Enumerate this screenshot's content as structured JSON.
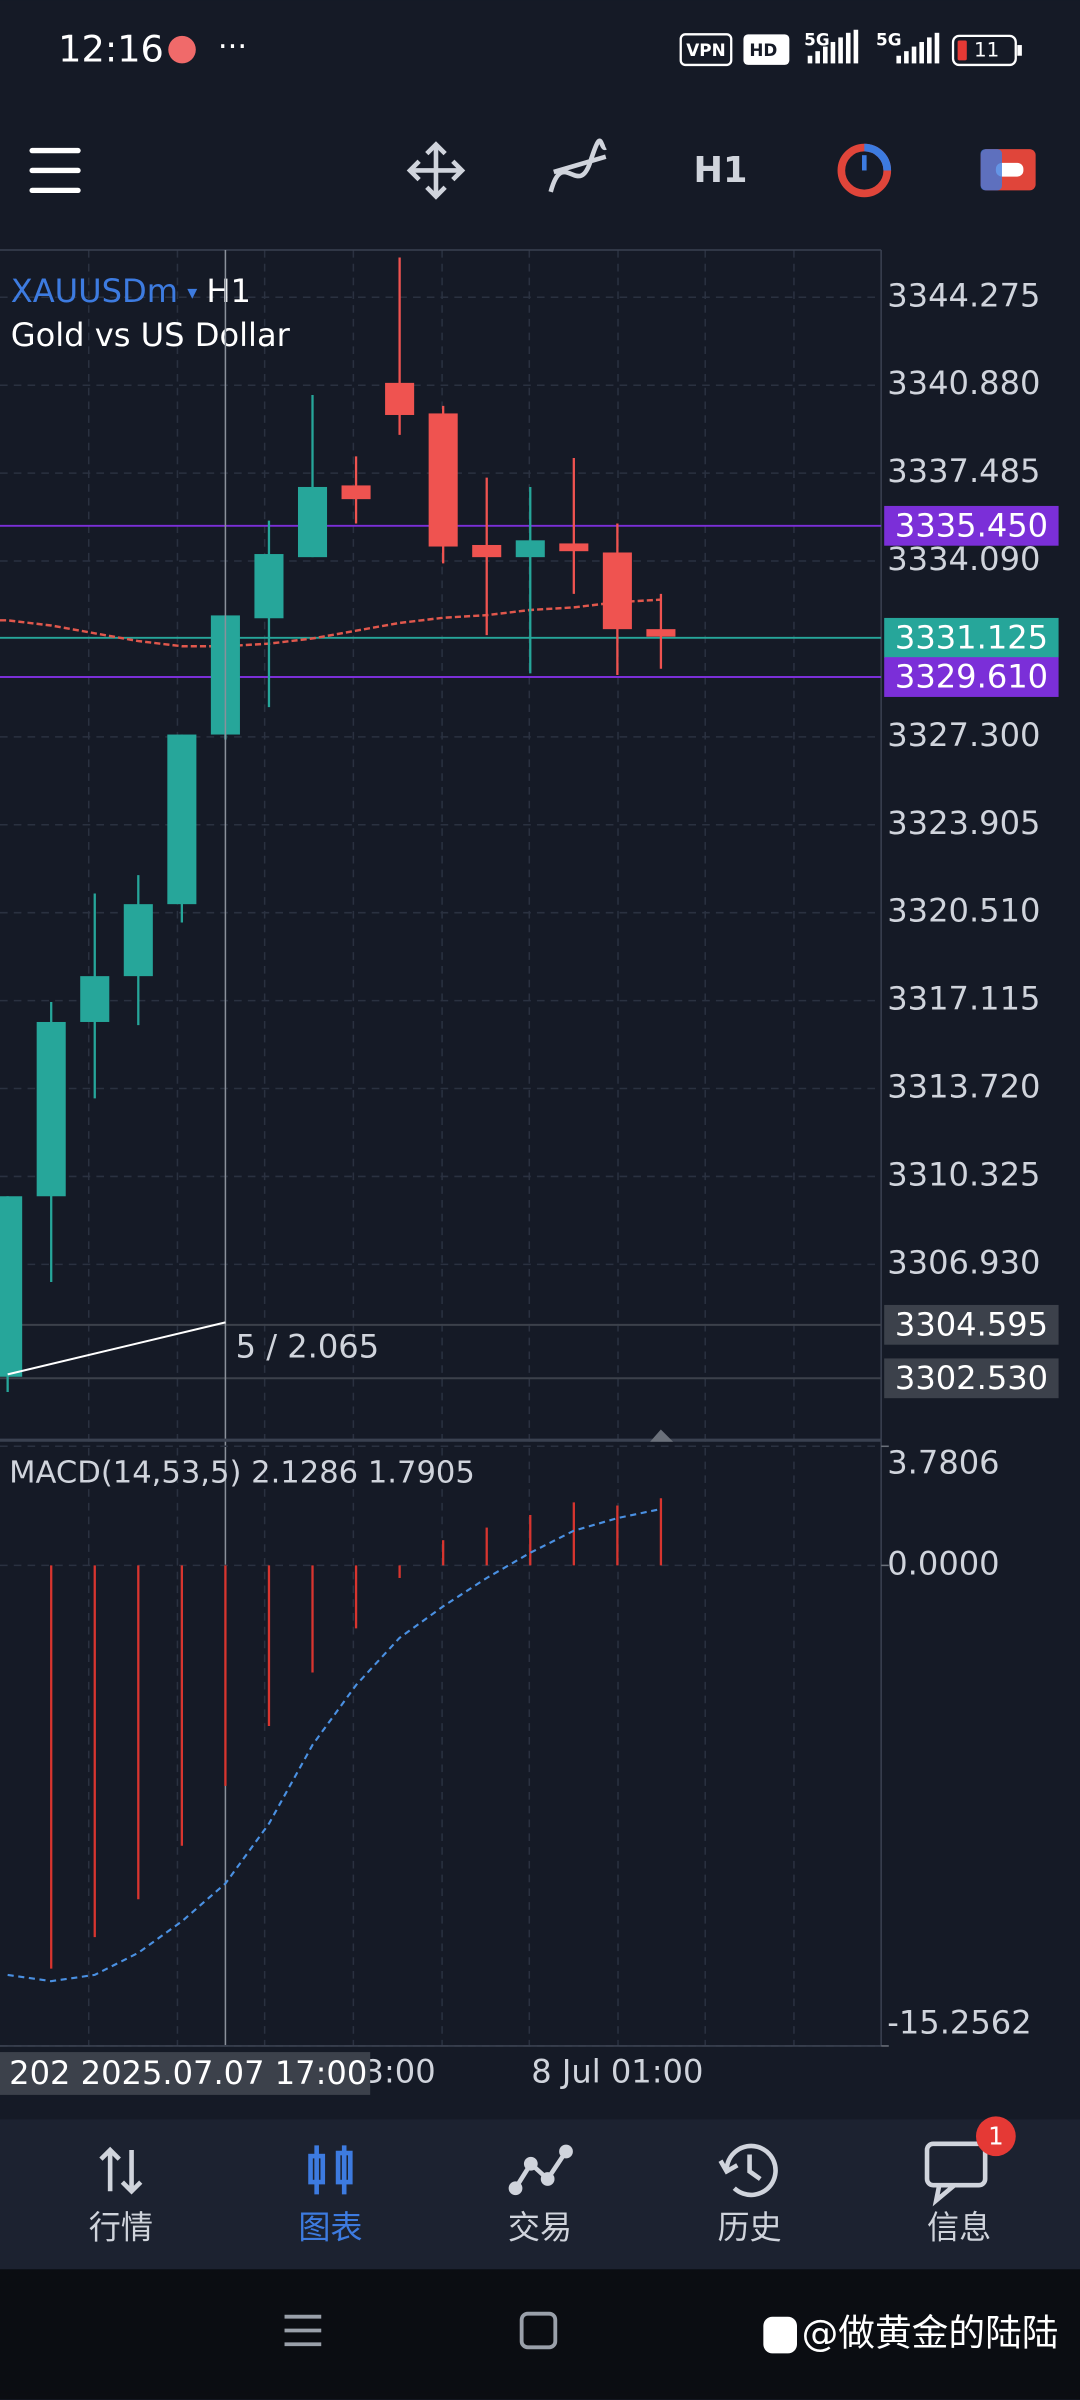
{
  "status_bar": {
    "time": "12:16",
    "vpn": "VPN",
    "hd": "HD",
    "net1": "5G",
    "net2": "5G",
    "battery": "11"
  },
  "toolbar": {
    "timeframe": "H1"
  },
  "chart_data": [
    {
      "type": "candlestick",
      "symbol": "XAUUSDm",
      "timeframe": "H1",
      "description": "Gold vs US Dollar",
      "categories": [
        null,
        null,
        null,
        null,
        null,
        null,
        null,
        null,
        null,
        "3:00",
        null,
        null,
        null,
        null,
        "8 Jul 01:00",
        null
      ],
      "ohlc": [
        [
          3302.59,
          3309.56,
          3302.0,
          3309.56
        ],
        [
          3309.56,
          3317.06,
          3306.25,
          3316.29
        ],
        [
          3316.29,
          3321.25,
          3313.34,
          3318.06
        ],
        [
          3318.06,
          3321.96,
          3316.17,
          3320.84
        ],
        [
          3320.84,
          3327.39,
          3320.13,
          3327.39
        ],
        [
          3327.39,
          3331.99,
          3327.2,
          3331.99
        ],
        [
          3331.88,
          3335.65,
          3328.45,
          3334.36
        ],
        [
          3334.24,
          3340.5,
          3334.24,
          3336.95
        ],
        [
          3337.01,
          3338.13,
          3335.54,
          3336.48
        ],
        [
          3340.97,
          3345.81,
          3338.96,
          3339.73
        ],
        [
          3339.79,
          3340.08,
          3334.0,
          3334.65
        ],
        [
          3334.71,
          3337.31,
          3331.23,
          3334.24
        ],
        [
          3334.24,
          3336.95,
          3329.75,
          3334.89
        ],
        [
          3334.77,
          3338.07,
          3332.82,
          3334.47
        ],
        [
          3334.42,
          3335.54,
          3329.69,
          3331.46
        ],
        [
          3331.46,
          3332.82,
          3329.93,
          3331.17
        ]
      ],
      "up_color": "#26a69a",
      "down_color": "#ef5350",
      "ma_values": [
        3331.8,
        3331.6,
        3331.3,
        3331.0,
        3330.8,
        3330.8,
        3330.9,
        3331.1,
        3331.4,
        3331.7,
        3331.9,
        3332.0,
        3332.2,
        3332.3,
        3332.5,
        3332.6
      ],
      "ma_color": "#e0574c",
      "ylim": [
        3300.2,
        3346.1
      ],
      "yticks": [
        {
          "value": 3344.275,
          "label": "3344.275"
        },
        {
          "value": 3340.88,
          "label": "3340.880"
        },
        {
          "value": 3337.485,
          "label": "3337.485"
        },
        {
          "value": 3334.09,
          "label": "3334.090"
        },
        {
          "value": 3327.3,
          "label": "3327.300"
        },
        {
          "value": 3323.905,
          "label": "3323.905"
        },
        {
          "value": 3320.51,
          "label": "3320.510"
        },
        {
          "value": 3317.115,
          "label": "3317.115"
        },
        {
          "value": 3313.72,
          "label": "3313.720"
        },
        {
          "value": 3310.325,
          "label": "3310.325"
        },
        {
          "value": 3306.93,
          "label": "3306.930"
        }
      ],
      "grid": true,
      "price_lines": [
        {
          "value": 3335.45,
          "label": "3335.450",
          "color": "#7b2fd8"
        },
        {
          "value": 3331.125,
          "label": "3331.125",
          "color": "#26a69a"
        },
        {
          "value": 3329.61,
          "label": "3329.610",
          "color": "#7b2fd8"
        },
        {
          "value": 3304.595,
          "label": "3304.595",
          "color": "#3c414b"
        },
        {
          "value": 3302.53,
          "label": "3302.530",
          "color": "#3c414b"
        }
      ],
      "crosshair_label": "202 2025.07.07 17:00",
      "measure_label": "5 / 2.065"
    },
    {
      "type": "macd",
      "label": "MACD(14,53,5) 2.1286 1.7905",
      "histogram": [
        null,
        -12.8,
        -11.8,
        -10.6,
        -8.9,
        -7.0,
        -5.1,
        -3.4,
        -2.0,
        -0.4,
        0.8,
        1.2,
        1.6,
        2.0,
        1.9,
        2.13
      ],
      "signal": [
        -13.0,
        -13.2,
        -13.0,
        -12.3,
        -11.3,
        -10.1,
        -8.2,
        -5.7,
        -3.8,
        -2.3,
        -1.3,
        -0.4,
        0.4,
        1.1,
        1.5,
        1.79
      ],
      "hist_color": "#d8352f",
      "signal_color": "#4a90e2",
      "ylim": [
        -15.2562,
        3.7806
      ],
      "yticks": [
        3.7806,
        {
          "value": 0,
          "label": "0.0000"
        },
        -15.2562
      ]
    }
  ],
  "nav": [
    {
      "label": "行情"
    },
    {
      "label": "图表"
    },
    {
      "label": "交易"
    },
    {
      "label": "历史"
    },
    {
      "label": "信息"
    }
  ],
  "nav_badge": "1",
  "watermark": "@做黄金的陆陆"
}
